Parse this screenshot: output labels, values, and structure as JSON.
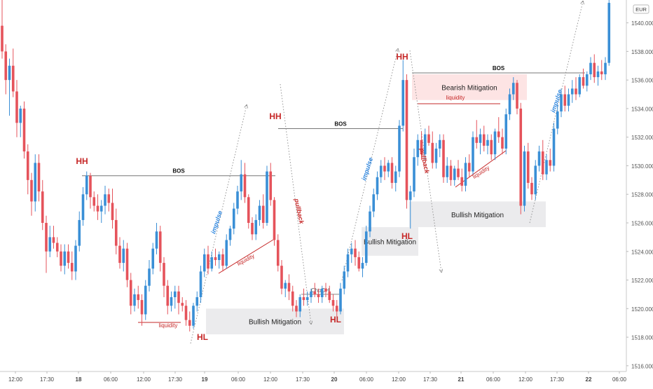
{
  "chart_data": {
    "type": "candlestick",
    "currency_label": "EUR",
    "x_tick_labels": [
      "12:00",
      "17:30",
      "18",
      "06:00",
      "12:00",
      "17:30",
      "19",
      "06:00",
      "12:00",
      "17:30",
      "20",
      "06:00",
      "12:00",
      "17:30",
      "21",
      "06:00",
      "12:00",
      "17:30",
      "22",
      "06:00"
    ],
    "y_tick_labels": [
      "1516.000",
      "1518.000",
      "1520.000",
      "1522.000",
      "1524.000",
      "1526.000",
      "1528.000",
      "1530.000",
      "1532.000",
      "1534.000",
      "1536.000",
      "1538.000",
      "1540.000"
    ],
    "ylim": [
      1515.6,
      1541.6
    ],
    "colors": {
      "up": "#3a8fd6",
      "down": "#e5535b",
      "annotation_red": "#c62828",
      "mitigation_bear": "#fde4e4",
      "mitigation_bull": "#ebebed"
    },
    "labels": {
      "hh": "HH",
      "hl": "HL",
      "bos": "BOS",
      "choch": "ChoCH",
      "liquidity": "liquidity",
      "impulse": "impulse",
      "pullback": "pullback",
      "bullish_mitigation": "Bullish Mitigation",
      "bearish_mitigation": "Bearish Mitigation"
    },
    "swing_points": [
      {
        "type": "HH",
        "x": 117,
        "price": 1529.3
      },
      {
        "type": "HL",
        "x": 289,
        "price": 1518.6
      },
      {
        "type": "HH",
        "x": 393,
        "price": 1530.1
      },
      {
        "type": "HL",
        "x": 479,
        "price": 1519.5
      },
      {
        "type": "HH",
        "x": 575,
        "price": 1537.2
      },
      {
        "type": "HL",
        "x": 581,
        "price": 1525.5
      }
    ],
    "bos_levels": [
      1529.3,
      1532.6,
      1536.5
    ],
    "mitigation_zones": [
      {
        "kind": "bullish",
        "price_top": 1520.0,
        "price_bottom": 1518.2
      },
      {
        "kind": "bullish",
        "price_top": 1525.7,
        "price_bottom": 1523.7
      },
      {
        "kind": "bearish",
        "price_top": 1536.4,
        "price_bottom": 1534.6
      },
      {
        "kind": "bullish",
        "price_top": 1527.5,
        "price_bottom": 1525.7
      }
    ],
    "candles": [
      [
        1539.8,
        1542.0,
        1537.5,
        1538.0
      ],
      [
        1538.0,
        1538.5,
        1535.0,
        1536.0
      ],
      [
        1536.0,
        1537.5,
        1533.5,
        1537.0
      ],
      [
        1537.0,
        1538.2,
        1534.8,
        1535.2
      ],
      [
        1535.2,
        1536.0,
        1532.0,
        1533.0
      ],
      [
        1533.0,
        1534.2,
        1532.0,
        1534.0
      ],
      [
        1534.0,
        1534.5,
        1530.5,
        1531.0
      ],
      [
        1531.0,
        1531.5,
        1528.0,
        1529.0
      ],
      [
        1529.0,
        1529.5,
        1526.5,
        1527.5
      ],
      [
        1527.5,
        1530.8,
        1526.8,
        1530.2
      ],
      [
        1530.2,
        1530.8,
        1527.5,
        1528.2
      ],
      [
        1528.2,
        1529.0,
        1525.5,
        1526.0
      ],
      [
        1526.0,
        1526.5,
        1522.5,
        1524.0
      ],
      [
        1524.0,
        1525.8,
        1523.6,
        1525.0
      ],
      [
        1525.0,
        1525.8,
        1524.2,
        1524.6
      ],
      [
        1524.6,
        1525.0,
        1523.6,
        1524.0
      ],
      [
        1524.0,
        1524.5,
        1522.6,
        1523.0
      ],
      [
        1523.0,
        1524.5,
        1522.4,
        1524.0
      ],
      [
        1524.0,
        1524.5,
        1522.8,
        1523.2
      ],
      [
        1523.2,
        1524.0,
        1522.0,
        1522.6
      ],
      [
        1522.6,
        1524.8,
        1522.0,
        1524.4
      ],
      [
        1524.4,
        1526.8,
        1524.0,
        1526.2
      ],
      [
        1526.2,
        1528.5,
        1525.8,
        1528.0
      ],
      [
        1528.0,
        1529.6,
        1527.6,
        1529.3
      ],
      [
        1529.3,
        1529.5,
        1527.0,
        1527.8
      ],
      [
        1527.8,
        1528.2,
        1526.8,
        1527.2
      ],
      [
        1527.2,
        1528.0,
        1526.2,
        1526.8
      ],
      [
        1526.8,
        1527.6,
        1526.0,
        1527.2
      ],
      [
        1527.2,
        1528.6,
        1526.6,
        1528.0
      ],
      [
        1528.0,
        1528.4,
        1526.8,
        1527.4
      ],
      [
        1527.4,
        1528.4,
        1525.6,
        1526.2
      ],
      [
        1526.2,
        1527.0,
        1523.8,
        1524.4
      ],
      [
        1524.4,
        1525.0,
        1522.8,
        1523.2
      ],
      [
        1523.2,
        1524.8,
        1522.6,
        1524.2
      ],
      [
        1524.2,
        1524.6,
        1521.5,
        1522.0
      ],
      [
        1522.0,
        1522.5,
        1519.6,
        1520.2
      ],
      [
        1520.2,
        1521.4,
        1519.8,
        1521.0
      ],
      [
        1521.0,
        1521.6,
        1520.0,
        1520.6
      ],
      [
        1520.6,
        1521.0,
        1518.8,
        1519.6
      ],
      [
        1519.6,
        1522.0,
        1519.2,
        1521.6
      ],
      [
        1521.6,
        1523.4,
        1521.2,
        1522.8
      ],
      [
        1522.8,
        1524.6,
        1522.4,
        1524.2
      ],
      [
        1524.2,
        1526.0,
        1523.8,
        1525.4
      ],
      [
        1525.4,
        1525.8,
        1522.6,
        1523.2
      ],
      [
        1523.2,
        1523.6,
        1520.8,
        1521.6
      ],
      [
        1521.6,
        1522.0,
        1519.6,
        1520.2
      ],
      [
        1520.2,
        1521.2,
        1519.8,
        1520.8
      ],
      [
        1520.8,
        1521.6,
        1520.0,
        1521.2
      ],
      [
        1521.2,
        1521.6,
        1519.6,
        1520.4
      ],
      [
        1520.4,
        1520.8,
        1519.8,
        1520.2
      ],
      [
        1520.2,
        1520.6,
        1518.8,
        1519.2
      ],
      [
        1519.2,
        1519.8,
        1518.4,
        1518.8
      ],
      [
        1518.8,
        1520.4,
        1518.6,
        1520.2
      ],
      [
        1520.2,
        1521.2,
        1519.8,
        1520.8
      ],
      [
        1520.8,
        1523.0,
        1520.4,
        1522.6
      ],
      [
        1522.6,
        1524.2,
        1522.2,
        1523.8
      ],
      [
        1523.8,
        1524.4,
        1522.4,
        1522.8
      ],
      [
        1522.8,
        1524.0,
        1522.6,
        1523.6
      ],
      [
        1523.6,
        1524.2,
        1523.0,
        1523.4
      ],
      [
        1523.4,
        1524.0,
        1522.8,
        1523.8
      ],
      [
        1523.8,
        1524.2,
        1522.6,
        1523.0
      ],
      [
        1523.0,
        1525.2,
        1522.8,
        1524.8
      ],
      [
        1524.8,
        1525.8,
        1524.4,
        1525.6
      ],
      [
        1525.6,
        1527.4,
        1525.2,
        1527.0
      ],
      [
        1527.0,
        1528.6,
        1526.6,
        1528.2
      ],
      [
        1528.2,
        1530.4,
        1527.6,
        1529.4
      ],
      [
        1529.4,
        1530.2,
        1527.4,
        1527.8
      ],
      [
        1527.8,
        1528.0,
        1525.6,
        1526.0
      ],
      [
        1526.0,
        1526.4,
        1524.8,
        1525.2
      ],
      [
        1525.2,
        1526.6,
        1524.8,
        1526.2
      ],
      [
        1526.2,
        1527.6,
        1525.8,
        1527.2
      ],
      [
        1527.2,
        1528.0,
        1525.6,
        1526.0
      ],
      [
        1526.0,
        1530.0,
        1525.8,
        1529.6
      ],
      [
        1529.6,
        1530.2,
        1527.2,
        1527.6
      ],
      [
        1527.6,
        1527.8,
        1524.4,
        1524.8
      ],
      [
        1524.8,
        1525.2,
        1522.6,
        1523.0
      ],
      [
        1523.0,
        1523.4,
        1521.0,
        1521.4
      ],
      [
        1521.4,
        1522.0,
        1520.8,
        1521.8
      ],
      [
        1521.8,
        1522.4,
        1520.6,
        1521.2
      ],
      [
        1521.2,
        1521.6,
        1519.8,
        1520.2
      ],
      [
        1520.2,
        1520.6,
        1519.4,
        1519.8
      ],
      [
        1519.8,
        1521.0,
        1519.4,
        1520.8
      ],
      [
        1520.8,
        1521.4,
        1520.2,
        1520.6
      ],
      [
        1520.6,
        1521.2,
        1520.2,
        1520.8
      ],
      [
        1520.8,
        1521.4,
        1520.4,
        1521.2
      ],
      [
        1521.2,
        1521.8,
        1520.8,
        1521.0
      ],
      [
        1521.0,
        1521.4,
        1520.4,
        1520.8
      ],
      [
        1520.8,
        1521.6,
        1520.4,
        1521.4
      ],
      [
        1521.4,
        1521.8,
        1520.8,
        1521.2
      ],
      [
        1521.2,
        1521.6,
        1520.4,
        1520.6
      ],
      [
        1520.6,
        1521.0,
        1519.8,
        1520.2
      ],
      [
        1520.2,
        1520.6,
        1519.4,
        1519.8
      ],
      [
        1519.8,
        1521.8,
        1519.6,
        1521.4
      ],
      [
        1521.4,
        1523.0,
        1521.0,
        1522.6
      ],
      [
        1522.6,
        1524.2,
        1522.2,
        1523.8
      ],
      [
        1523.8,
        1524.6,
        1523.2,
        1524.2
      ],
      [
        1524.2,
        1524.8,
        1523.0,
        1523.6
      ],
      [
        1523.6,
        1524.0,
        1522.6,
        1522.8
      ],
      [
        1522.8,
        1523.6,
        1522.2,
        1523.2
      ],
      [
        1523.2,
        1525.8,
        1523.0,
        1525.4
      ],
      [
        1525.4,
        1527.2,
        1525.0,
        1526.8
      ],
      [
        1526.8,
        1528.4,
        1526.4,
        1528.0
      ],
      [
        1528.0,
        1529.6,
        1527.6,
        1529.2
      ],
      [
        1529.2,
        1530.4,
        1528.8,
        1530.0
      ],
      [
        1530.0,
        1530.6,
        1529.0,
        1529.6
      ],
      [
        1529.6,
        1530.4,
        1529.2,
        1530.2
      ],
      [
        1530.2,
        1530.6,
        1528.4,
        1528.8
      ],
      [
        1528.8,
        1530.0,
        1528.2,
        1529.6
      ],
      [
        1529.6,
        1533.2,
        1529.2,
        1532.8
      ],
      [
        1532.8,
        1537.4,
        1532.4,
        1536.0
      ],
      [
        1536.0,
        1536.4,
        1527.0,
        1527.6
      ],
      [
        1527.6,
        1528.6,
        1525.6,
        1528.2
      ],
      [
        1528.2,
        1531.2,
        1527.8,
        1530.6
      ],
      [
        1530.6,
        1532.2,
        1530.0,
        1531.8
      ],
      [
        1531.8,
        1532.4,
        1530.4,
        1530.8
      ],
      [
        1530.8,
        1532.6,
        1530.4,
        1532.2
      ],
      [
        1532.2,
        1532.8,
        1531.4,
        1531.6
      ],
      [
        1531.6,
        1532.4,
        1529.8,
        1530.2
      ],
      [
        1530.2,
        1531.6,
        1529.8,
        1531.2
      ],
      [
        1531.2,
        1532.2,
        1530.6,
        1531.8
      ],
      [
        1531.8,
        1532.2,
        1528.8,
        1529.2
      ],
      [
        1529.2,
        1530.6,
        1528.8,
        1530.0
      ],
      [
        1530.0,
        1530.4,
        1528.6,
        1529.0
      ],
      [
        1529.0,
        1530.0,
        1528.6,
        1529.8
      ],
      [
        1529.8,
        1530.4,
        1529.0,
        1529.2
      ],
      [
        1529.2,
        1529.8,
        1528.2,
        1528.6
      ],
      [
        1528.6,
        1530.6,
        1528.2,
        1530.2
      ],
      [
        1530.2,
        1530.8,
        1529.2,
        1529.6
      ],
      [
        1529.6,
        1532.4,
        1529.4,
        1532.0
      ],
      [
        1532.0,
        1533.2,
        1531.2,
        1531.6
      ],
      [
        1531.6,
        1532.6,
        1530.8,
        1532.2
      ],
      [
        1532.2,
        1532.8,
        1531.0,
        1531.4
      ],
      [
        1531.4,
        1532.2,
        1530.8,
        1531.8
      ],
      [
        1531.8,
        1532.2,
        1530.4,
        1530.8
      ],
      [
        1530.8,
        1532.6,
        1530.4,
        1532.4
      ],
      [
        1532.4,
        1533.4,
        1531.6,
        1532.0
      ],
      [
        1532.0,
        1532.6,
        1530.8,
        1531.2
      ],
      [
        1531.2,
        1534.0,
        1530.8,
        1533.6
      ],
      [
        1533.6,
        1535.4,
        1533.2,
        1535.0
      ],
      [
        1535.0,
        1536.2,
        1534.6,
        1535.8
      ],
      [
        1535.8,
        1536.0,
        1533.6,
        1534.0
      ],
      [
        1534.0,
        1534.4,
        1526.6,
        1527.2
      ],
      [
        1527.2,
        1531.4,
        1526.8,
        1531.0
      ],
      [
        1531.0,
        1531.6,
        1528.4,
        1528.8
      ],
      [
        1528.8,
        1529.2,
        1527.6,
        1528.0
      ],
      [
        1528.0,
        1530.4,
        1527.6,
        1530.0
      ],
      [
        1530.0,
        1531.4,
        1529.6,
        1531.0
      ],
      [
        1531.0,
        1531.8,
        1529.0,
        1529.4
      ],
      [
        1529.4,
        1530.8,
        1529.0,
        1530.4
      ],
      [
        1530.4,
        1531.2,
        1529.6,
        1530.0
      ],
      [
        1530.0,
        1533.0,
        1529.6,
        1532.6
      ],
      [
        1532.6,
        1534.2,
        1532.2,
        1533.8
      ],
      [
        1533.8,
        1535.4,
        1533.4,
        1535.0
      ],
      [
        1535.0,
        1535.6,
        1533.8,
        1534.2
      ],
      [
        1534.2,
        1535.4,
        1533.8,
        1535.0
      ],
      [
        1535.0,
        1536.0,
        1534.4,
        1535.4
      ],
      [
        1535.4,
        1536.2,
        1534.6,
        1535.0
      ],
      [
        1535.0,
        1536.4,
        1534.8,
        1536.2
      ],
      [
        1536.2,
        1536.8,
        1535.4,
        1535.6
      ],
      [
        1535.6,
        1536.6,
        1535.2,
        1536.4
      ],
      [
        1536.4,
        1537.6,
        1536.0,
        1537.2
      ],
      [
        1537.2,
        1537.8,
        1535.8,
        1536.2
      ],
      [
        1536.2,
        1537.0,
        1535.6,
        1536.6
      ],
      [
        1536.6,
        1537.4,
        1536.0,
        1536.4
      ],
      [
        1536.4,
        1537.6,
        1536.0,
        1537.2
      ],
      [
        1537.2,
        1541.8,
        1537.0,
        1541.4
      ]
    ]
  }
}
